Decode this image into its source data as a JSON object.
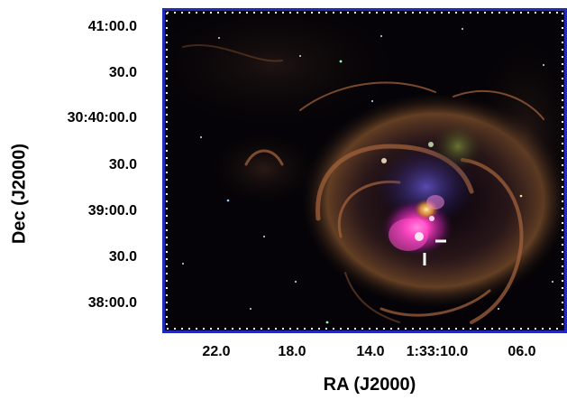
{
  "axes": {
    "x_label": "RA (J2000)",
    "y_label": "Dec (J2000)",
    "x_ticks": [
      "22.0",
      "18.0",
      "14.0",
      "1:33:10.0",
      "06.0"
    ],
    "y_ticks": [
      "41:00.0",
      "30.0",
      "30:40:00.0",
      "30.0",
      "39:00.0",
      "30.0",
      "38:00.0"
    ]
  },
  "colors": {
    "frame": "#1f2bb8",
    "background": "#050307",
    "filament": "#a0603a",
    "emission": "#d02a9a",
    "marker": "#ffffff"
  }
}
